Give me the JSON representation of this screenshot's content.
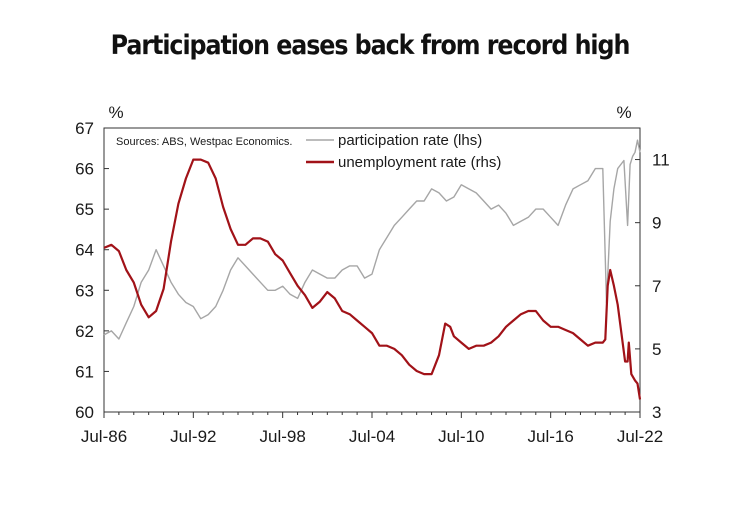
{
  "title": "Participation eases back from record high",
  "chart_data": {
    "type": "line",
    "source_note": "Sources: ABS, Westpac Economics.",
    "x_range": [
      "1986-07",
      "2022-07"
    ],
    "x_tick_labels": [
      "Jul-86",
      "Jul-92",
      "Jul-98",
      "Jul-04",
      "Jul-10",
      "Jul-16",
      "Jul-22"
    ],
    "left_axis": {
      "unit": "%",
      "ylim": [
        60,
        67
      ],
      "ticks": [
        60,
        61,
        62,
        63,
        64,
        65,
        66,
        67
      ]
    },
    "right_axis": {
      "unit": "%",
      "ylim": [
        3,
        12
      ],
      "ticks": [
        3,
        5,
        7,
        9,
        11
      ]
    },
    "grid": false,
    "legend_position": "top-right",
    "series": [
      {
        "name": "participation rate (lhs)",
        "axis": "left",
        "color": "#a6a6a6",
        "points": [
          [
            "1986-07",
            61.9
          ],
          [
            "1987-01",
            62.0
          ],
          [
            "1987-07",
            61.8
          ],
          [
            "1988-01",
            62.2
          ],
          [
            "1988-07",
            62.6
          ],
          [
            "1989-01",
            63.2
          ],
          [
            "1989-07",
            63.5
          ],
          [
            "1990-01",
            64.0
          ],
          [
            "1990-07",
            63.6
          ],
          [
            "1991-01",
            63.2
          ],
          [
            "1991-07",
            62.9
          ],
          [
            "1992-01",
            62.7
          ],
          [
            "1992-07",
            62.6
          ],
          [
            "1993-01",
            62.3
          ],
          [
            "1993-07",
            62.4
          ],
          [
            "1994-01",
            62.6
          ],
          [
            "1994-07",
            63.0
          ],
          [
            "1995-01",
            63.5
          ],
          [
            "1995-07",
            63.8
          ],
          [
            "1996-01",
            63.6
          ],
          [
            "1996-07",
            63.4
          ],
          [
            "1997-01",
            63.2
          ],
          [
            "1997-07",
            63.0
          ],
          [
            "1998-01",
            63.0
          ],
          [
            "1998-07",
            63.1
          ],
          [
            "1999-01",
            62.9
          ],
          [
            "1999-07",
            62.8
          ],
          [
            "2000-01",
            63.2
          ],
          [
            "2000-07",
            63.5
          ],
          [
            "2001-01",
            63.4
          ],
          [
            "2001-07",
            63.3
          ],
          [
            "2002-01",
            63.3
          ],
          [
            "2002-07",
            63.5
          ],
          [
            "2003-01",
            63.6
          ],
          [
            "2003-07",
            63.6
          ],
          [
            "2004-01",
            63.3
          ],
          [
            "2004-07",
            63.4
          ],
          [
            "2005-01",
            64.0
          ],
          [
            "2005-07",
            64.3
          ],
          [
            "2006-01",
            64.6
          ],
          [
            "2006-07",
            64.8
          ],
          [
            "2007-01",
            65.0
          ],
          [
            "2007-07",
            65.2
          ],
          [
            "2008-01",
            65.2
          ],
          [
            "2008-07",
            65.5
          ],
          [
            "2009-01",
            65.4
          ],
          [
            "2009-07",
            65.2
          ],
          [
            "2010-01",
            65.3
          ],
          [
            "2010-07",
            65.6
          ],
          [
            "2011-01",
            65.5
          ],
          [
            "2011-07",
            65.4
          ],
          [
            "2012-01",
            65.2
          ],
          [
            "2012-07",
            65.0
          ],
          [
            "2013-01",
            65.1
          ],
          [
            "2013-07",
            64.9
          ],
          [
            "2014-01",
            64.6
          ],
          [
            "2014-07",
            64.7
          ],
          [
            "2015-01",
            64.8
          ],
          [
            "2015-07",
            65.0
          ],
          [
            "2016-01",
            65.0
          ],
          [
            "2016-07",
            64.8
          ],
          [
            "2017-01",
            64.6
          ],
          [
            "2017-07",
            65.1
          ],
          [
            "2018-01",
            65.5
          ],
          [
            "2018-07",
            65.6
          ],
          [
            "2019-01",
            65.7
          ],
          [
            "2019-07",
            66.0
          ],
          [
            "2020-01",
            66.0
          ],
          [
            "2020-04",
            62.7
          ],
          [
            "2020-07",
            64.7
          ],
          [
            "2020-10",
            65.5
          ],
          [
            "2021-01",
            66.0
          ],
          [
            "2021-06",
            66.2
          ],
          [
            "2021-09",
            64.6
          ],
          [
            "2021-11",
            66.1
          ],
          [
            "2022-01",
            66.3
          ],
          [
            "2022-03",
            66.4
          ],
          [
            "2022-05",
            66.7
          ],
          [
            "2022-07",
            66.4
          ]
        ]
      },
      {
        "name": "unemployment rate (rhs)",
        "axis": "right",
        "color": "#a11218",
        "points": [
          [
            "1986-07",
            8.2
          ],
          [
            "1987-01",
            8.3
          ],
          [
            "1987-07",
            8.1
          ],
          [
            "1988-01",
            7.5
          ],
          [
            "1988-07",
            7.1
          ],
          [
            "1989-01",
            6.4
          ],
          [
            "1989-07",
            6.0
          ],
          [
            "1990-01",
            6.2
          ],
          [
            "1990-07",
            6.9
          ],
          [
            "1991-01",
            8.4
          ],
          [
            "1991-07",
            9.6
          ],
          [
            "1992-01",
            10.4
          ],
          [
            "1992-07",
            11.0
          ],
          [
            "1993-01",
            11.0
          ],
          [
            "1993-07",
            10.9
          ],
          [
            "1994-01",
            10.4
          ],
          [
            "1994-07",
            9.5
          ],
          [
            "1995-01",
            8.8
          ],
          [
            "1995-07",
            8.3
          ],
          [
            "1996-01",
            8.3
          ],
          [
            "1996-07",
            8.5
          ],
          [
            "1997-01",
            8.5
          ],
          [
            "1997-07",
            8.4
          ],
          [
            "1998-01",
            8.0
          ],
          [
            "1998-07",
            7.8
          ],
          [
            "1999-01",
            7.4
          ],
          [
            "1999-07",
            7.0
          ],
          [
            "2000-01",
            6.7
          ],
          [
            "2000-07",
            6.3
          ],
          [
            "2001-01",
            6.5
          ],
          [
            "2001-07",
            6.8
          ],
          [
            "2002-01",
            6.6
          ],
          [
            "2002-07",
            6.2
          ],
          [
            "2003-01",
            6.1
          ],
          [
            "2003-07",
            5.9
          ],
          [
            "2004-01",
            5.7
          ],
          [
            "2004-07",
            5.5
          ],
          [
            "2005-01",
            5.1
          ],
          [
            "2005-07",
            5.1
          ],
          [
            "2006-01",
            5.0
          ],
          [
            "2006-07",
            4.8
          ],
          [
            "2007-01",
            4.5
          ],
          [
            "2007-07",
            4.3
          ],
          [
            "2008-01",
            4.2
          ],
          [
            "2008-07",
            4.2
          ],
          [
            "2008-10",
            4.5
          ],
          [
            "2009-01",
            4.8
          ],
          [
            "2009-06",
            5.8
          ],
          [
            "2009-10",
            5.7
          ],
          [
            "2010-01",
            5.4
          ],
          [
            "2010-07",
            5.2
          ],
          [
            "2011-01",
            5.0
          ],
          [
            "2011-07",
            5.1
          ],
          [
            "2012-01",
            5.1
          ],
          [
            "2012-07",
            5.2
          ],
          [
            "2013-01",
            5.4
          ],
          [
            "2013-07",
            5.7
          ],
          [
            "2014-01",
            5.9
          ],
          [
            "2014-07",
            6.1
          ],
          [
            "2015-01",
            6.2
          ],
          [
            "2015-07",
            6.2
          ],
          [
            "2016-01",
            5.9
          ],
          [
            "2016-07",
            5.7
          ],
          [
            "2017-01",
            5.7
          ],
          [
            "2017-07",
            5.6
          ],
          [
            "2018-01",
            5.5
          ],
          [
            "2018-07",
            5.3
          ],
          [
            "2019-01",
            5.1
          ],
          [
            "2019-07",
            5.2
          ],
          [
            "2020-01",
            5.2
          ],
          [
            "2020-03",
            5.3
          ],
          [
            "2020-05",
            7.0
          ],
          [
            "2020-07",
            7.5
          ],
          [
            "2020-10",
            7.0
          ],
          [
            "2021-01",
            6.4
          ],
          [
            "2021-04",
            5.5
          ],
          [
            "2021-07",
            4.6
          ],
          [
            "2021-09",
            4.6
          ],
          [
            "2021-10",
            5.2
          ],
          [
            "2021-12",
            4.2
          ],
          [
            "2022-03",
            4.0
          ],
          [
            "2022-05",
            3.9
          ],
          [
            "2022-07",
            3.4
          ]
        ]
      }
    ]
  }
}
